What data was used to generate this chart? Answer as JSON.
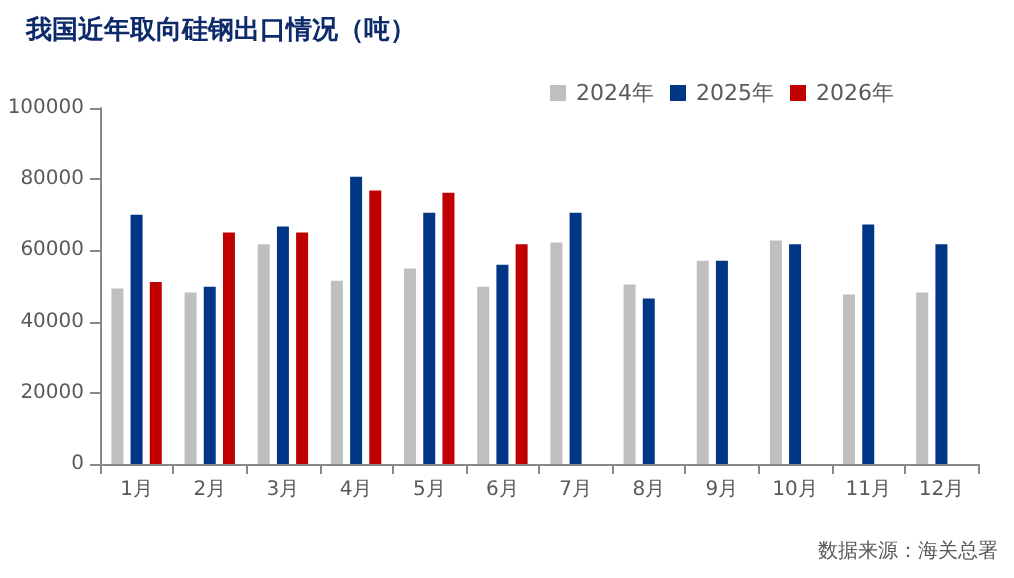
{
  "chart_data": {
    "type": "bar",
    "title": "我国近年取向硅钢出口情况（吨）",
    "categories": [
      "1月",
      "2月",
      "3月",
      "4月",
      "5月",
      "6月",
      "7月",
      "8月",
      "9月",
      "10月",
      "11月",
      "12月"
    ],
    "series": [
      {
        "name": "2024年",
        "color": "#bfbfbf",
        "values": [
          49300,
          48200,
          61700,
          51500,
          54900,
          49800,
          62200,
          50400,
          57100,
          62800,
          47600,
          48200
        ]
      },
      {
        "name": "2025年",
        "color": "#003686",
        "values": [
          70000,
          49800,
          66700,
          80700,
          70600,
          56000,
          70600,
          46500,
          57100,
          61700,
          67300,
          61700
        ]
      },
      {
        "name": "2026年",
        "color": "#c00000",
        "values": [
          51100,
          65000,
          65000,
          76800,
          76200,
          61700,
          null,
          null,
          null,
          null,
          null,
          null
        ]
      }
    ],
    "ylim": [
      0,
      100000
    ],
    "yticks": [
      0,
      20000,
      40000,
      60000,
      80000,
      100000
    ],
    "grid": false,
    "legend": "top right",
    "annotations": [
      "数据来源：海关总署"
    ]
  }
}
